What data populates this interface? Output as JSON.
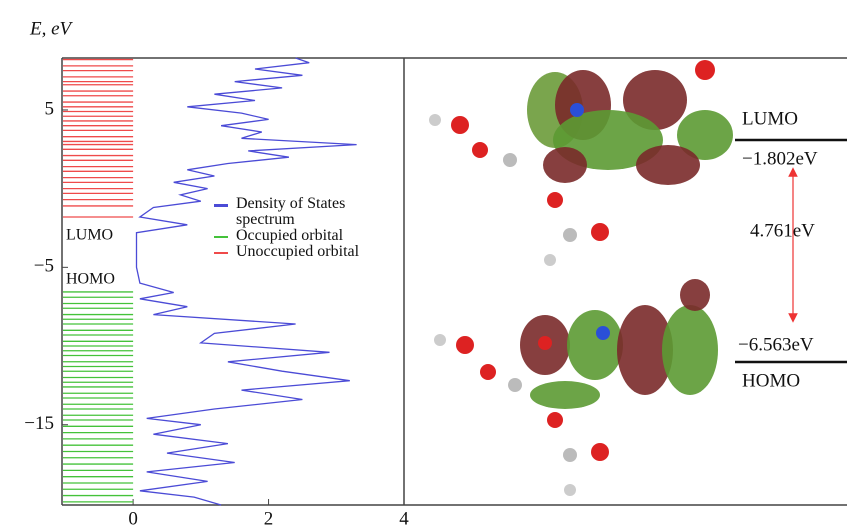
{
  "chart_data": {
    "type": "dos",
    "y_label": "E, eV",
    "ylim": [
      -20.1,
      8.3
    ],
    "yticks": [
      5,
      {
        "value": -5,
        "label": "−5"
      },
      {
        "value": -15,
        "label": "−15"
      }
    ],
    "xlim": [
      -1.05,
      4
    ],
    "xticks": [
      0,
      2,
      4
    ],
    "series": [
      {
        "name": "Density of States spectrum",
        "color": "#4b4bd6",
        "y": [
          8.3,
          8,
          7.6,
          7.2,
          6.8,
          6.4,
          6,
          5.6,
          5.2,
          4.8,
          4.4,
          4,
          3.6,
          3.2,
          2.8,
          2.4,
          2,
          1.6,
          1.2,
          0.8,
          0.4,
          0,
          -0.4,
          -0.8,
          -1.2,
          -1.8,
          -2.3,
          -2.8,
          -4,
          -5,
          -6,
          -6.6,
          -7,
          -7.5,
          -8,
          -8.6,
          -9.2,
          -9.8,
          -10.4,
          -11,
          -11.6,
          -12.2,
          -12.8,
          -13.4,
          -14,
          -14.6,
          -15,
          -15.6,
          -16.2,
          -16.8,
          -17.4,
          -18,
          -18.6,
          -19.2,
          -19.6,
          -20.1
        ],
        "x": [
          2.4,
          2.6,
          1.8,
          2.5,
          1.5,
          2.2,
          1.2,
          1.8,
          0.8,
          1.6,
          2.0,
          1.3,
          1.9,
          1.6,
          3.3,
          1.7,
          2.3,
          1.4,
          0.8,
          1.2,
          0.6,
          1.1,
          0.7,
          1.0,
          0.3,
          0.1,
          0.8,
          0.05,
          0.05,
          0.05,
          0.1,
          0.6,
          0.1,
          0.8,
          0.3,
          2.4,
          1.2,
          1.0,
          2.9,
          1.4,
          2.2,
          3.2,
          1.6,
          2.5,
          1.2,
          0.2,
          1.0,
          0.3,
          1.4,
          0.5,
          1.5,
          0.2,
          1.1,
          0.1,
          0.9,
          1.3
        ]
      },
      {
        "name": "Occupied orbital",
        "color": "#44c23a",
        "levels": [
          -6.563,
          -6.9,
          -7.3,
          -7.6,
          -8.0,
          -8.3,
          -8.6,
          -9.0,
          -9.3,
          -9.7,
          -10.0,
          -10.3,
          -10.6,
          -11.0,
          -11.3,
          -11.6,
          -12.0,
          -12.3,
          -12.6,
          -13.0,
          -13.3,
          -13.7,
          -14.0,
          -14.4,
          -14.7,
          -15.1,
          -15.5,
          -15.9,
          -16.3,
          -16.7,
          -17.1,
          -17.5,
          -17.9,
          -18.3,
          -18.7,
          -19.1,
          -19.5,
          -19.9
        ]
      },
      {
        "name": "Unoccupied orbital",
        "color": "#ef4a4a",
        "levels": [
          8.2,
          7.8,
          7.5,
          7.1,
          6.8,
          6.6,
          6.2,
          5.9,
          5.5,
          5.2,
          4.9,
          4.6,
          4.3,
          4.0,
          3.7,
          3.3,
          3.0,
          2.8,
          2.5,
          2.1,
          1.8,
          1.4,
          1.1,
          0.7,
          0.4,
          0.0,
          -0.3,
          -0.7,
          -1.1,
          -1.802
        ]
      }
    ],
    "annotations": [
      {
        "text": "LUMO"
      },
      {
        "text": "HOMO"
      }
    ],
    "orbital_panel": {
      "lumo_label": "LUMO",
      "lumo_energy": "−1.802eV",
      "gap": "4.761eV",
      "homo_energy": "−6.563eV",
      "homo_label": "HOMO"
    }
  }
}
